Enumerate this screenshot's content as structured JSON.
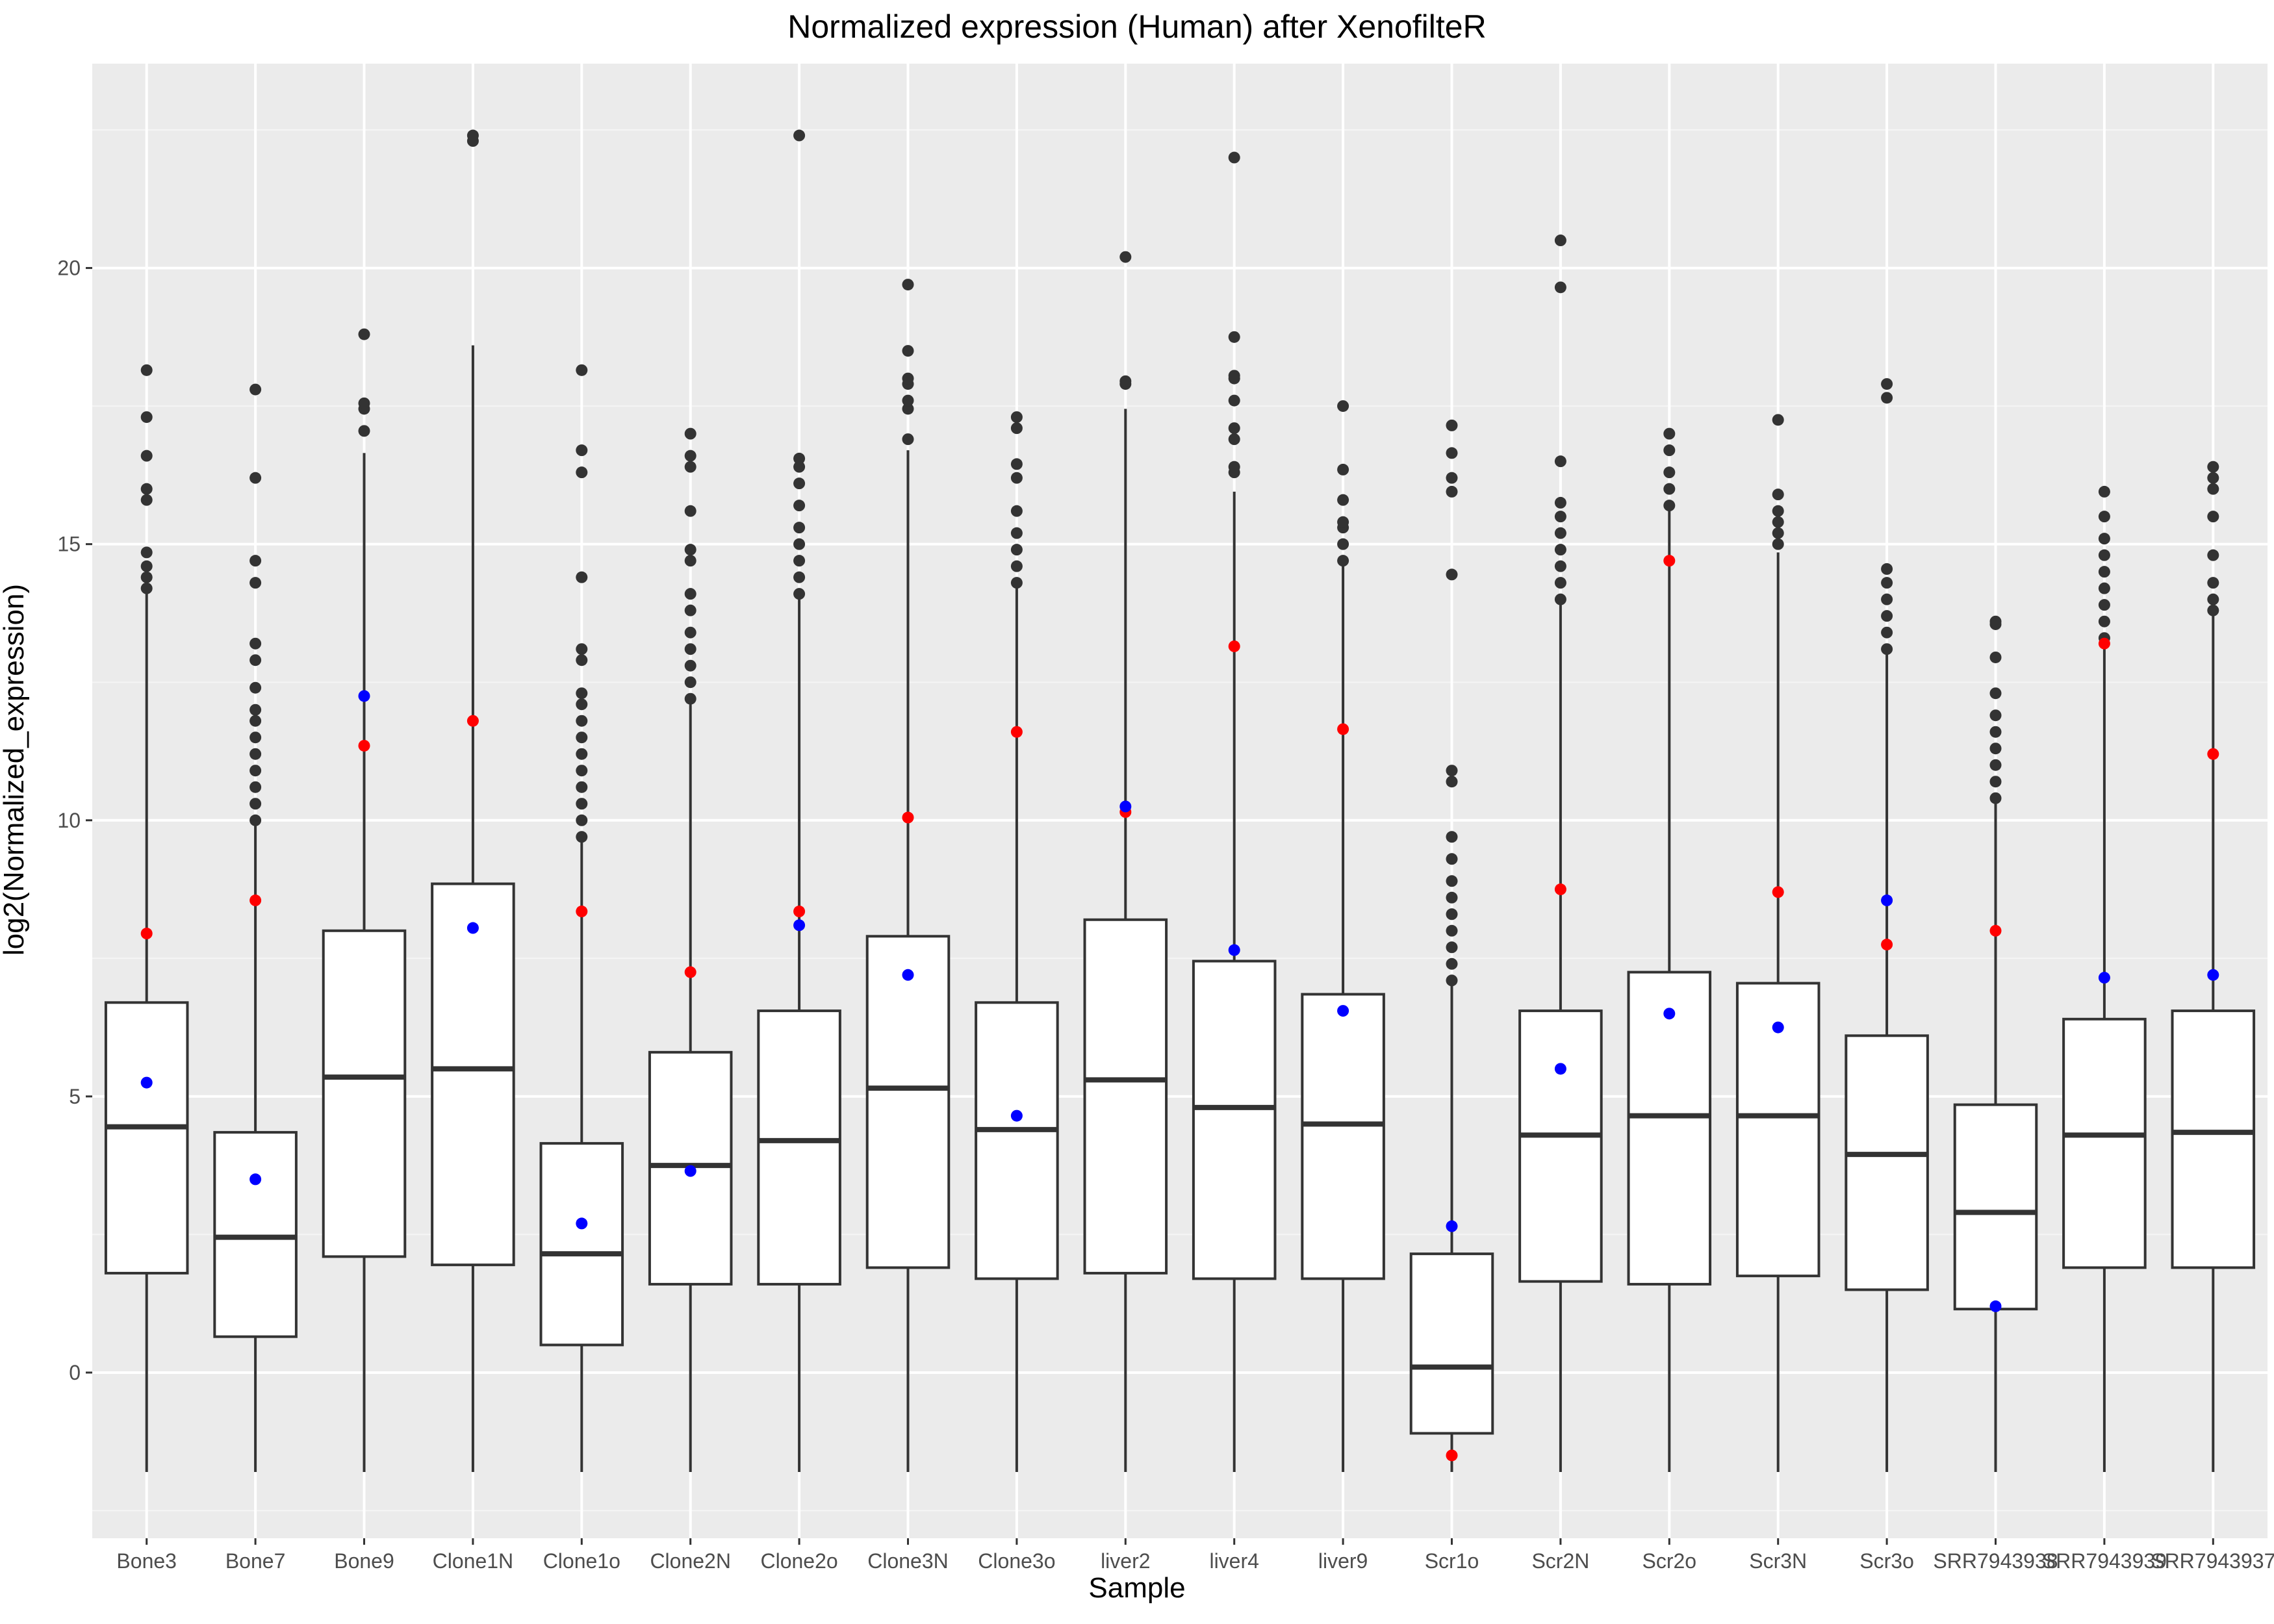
{
  "chart_data": {
    "type": "box",
    "title": "Normalized expression (Human) after XenofilteR",
    "xlabel": "Sample",
    "ylabel": "log2(Normalized_expression)",
    "ylim": [
      -3,
      23.7
    ],
    "yticks": [
      0,
      5,
      10,
      15,
      20
    ],
    "grid": true,
    "legend": "none",
    "colors": {
      "panel": "#EBEBEB",
      "grid_major": "#FFFFFF",
      "grid_minor": "#F5F5F5",
      "box_fill": "#FFFFFF",
      "box_line": "#333333",
      "outlier": "#333333",
      "blue_point": "#0000FF",
      "red_point": "#FF0000"
    },
    "categories": [
      "Bone3",
      "Bone7",
      "Bone9",
      "Clone1N",
      "Clone1o",
      "Clone2N",
      "Clone2o",
      "Clone3N",
      "Clone3o",
      "liver2",
      "liver4",
      "liver9",
      "Scr1o",
      "Scr2N",
      "Scr2o",
      "Scr3N",
      "Scr3o",
      "SRR7943938",
      "SRR7943939",
      "SRR7943937"
    ],
    "boxes": [
      {
        "q1": 1.8,
        "median": 4.45,
        "q3": 6.7,
        "lower": -1.8,
        "upper": 14.1,
        "blue": 5.25,
        "red": 7.95,
        "outliers": [
          14.2,
          14.4,
          14.6,
          14.85,
          15.8,
          16.0,
          16.6,
          17.3,
          18.15
        ]
      },
      {
        "q1": 0.65,
        "median": 2.45,
        "q3": 4.35,
        "lower": -1.8,
        "upper": 9.9,
        "blue": 3.5,
        "red": 8.55,
        "outliers": [
          10.0,
          10.3,
          10.6,
          10.9,
          11.2,
          11.5,
          11.8,
          12.0,
          12.4,
          12.9,
          13.2,
          14.3,
          14.7,
          16.2,
          17.8
        ]
      },
      {
        "q1": 2.1,
        "median": 5.35,
        "q3": 8.0,
        "lower": -1.8,
        "upper": 16.65,
        "blue": 12.25,
        "red": 11.35,
        "outliers": [
          17.05,
          17.45,
          17.55,
          18.8
        ]
      },
      {
        "q1": 1.95,
        "median": 5.5,
        "q3": 8.85,
        "lower": -1.8,
        "upper": 18.6,
        "blue": 8.05,
        "red": 11.8,
        "outliers": [
          22.3,
          22.4
        ]
      },
      {
        "q1": 0.5,
        "median": 2.15,
        "q3": 4.15,
        "lower": -1.8,
        "upper": 9.6,
        "blue": 2.7,
        "red": 8.35,
        "outliers": [
          9.7,
          10.0,
          10.3,
          10.6,
          10.9,
          11.2,
          11.5,
          11.8,
          12.1,
          12.3,
          12.9,
          13.1,
          14.4,
          16.3,
          16.7,
          18.15
        ]
      },
      {
        "q1": 1.6,
        "median": 3.75,
        "q3": 5.8,
        "lower": -1.8,
        "upper": 12.1,
        "blue": 3.65,
        "red": 7.25,
        "outliers": [
          12.2,
          12.5,
          12.8,
          13.1,
          13.4,
          13.8,
          14.1,
          14.7,
          14.9,
          15.6,
          16.4,
          16.6,
          17.0
        ]
      },
      {
        "q1": 1.6,
        "median": 4.2,
        "q3": 6.55,
        "lower": -1.8,
        "upper": 14.0,
        "blue": 8.1,
        "red": 8.35,
        "outliers": [
          14.1,
          14.4,
          14.7,
          15.0,
          15.3,
          15.7,
          16.1,
          16.4,
          16.55,
          22.4
        ]
      },
      {
        "q1": 1.9,
        "median": 5.15,
        "q3": 7.9,
        "lower": -1.8,
        "upper": 16.7,
        "blue": 7.2,
        "red": 10.05,
        "outliers": [
          16.9,
          17.45,
          17.6,
          17.9,
          18.0,
          18.5,
          19.7
        ]
      },
      {
        "q1": 1.7,
        "median": 4.4,
        "q3": 6.7,
        "lower": -1.8,
        "upper": 14.2,
        "blue": 4.65,
        "red": 11.6,
        "outliers": [
          14.3,
          14.6,
          14.9,
          15.2,
          15.6,
          16.2,
          16.45,
          17.1,
          17.3
        ]
      },
      {
        "q1": 1.8,
        "median": 5.3,
        "q3": 8.2,
        "lower": -1.8,
        "upper": 17.45,
        "blue": 10.25,
        "red": 10.15,
        "outliers": [
          17.9,
          17.95,
          20.2
        ]
      },
      {
        "q1": 1.7,
        "median": 4.8,
        "q3": 7.45,
        "lower": -1.8,
        "upper": 15.95,
        "blue": 7.65,
        "red": 13.15,
        "outliers": [
          16.3,
          16.4,
          16.9,
          17.1,
          17.6,
          18.0,
          18.05,
          18.75,
          22.0
        ]
      },
      {
        "q1": 1.7,
        "median": 4.5,
        "q3": 6.85,
        "lower": -1.8,
        "upper": 14.6,
        "blue": 6.55,
        "red": 11.65,
        "outliers": [
          14.7,
          15.0,
          15.3,
          15.4,
          15.8,
          16.35,
          17.5
        ]
      },
      {
        "q1": -1.1,
        "median": 0.1,
        "q3": 2.15,
        "lower": -1.8,
        "upper": 7.0,
        "blue": 2.65,
        "red": -1.5,
        "outliers": [
          7.1,
          7.4,
          7.7,
          8.0,
          8.3,
          8.6,
          8.9,
          9.3,
          9.7,
          10.7,
          10.9,
          14.45,
          15.95,
          16.2,
          16.65,
          17.15
        ]
      },
      {
        "q1": 1.65,
        "median": 4.3,
        "q3": 6.55,
        "lower": -1.8,
        "upper": 13.9,
        "blue": 5.5,
        "red": 8.75,
        "outliers": [
          14.0,
          14.3,
          14.6,
          14.9,
          15.2,
          15.5,
          15.75,
          16.5,
          19.65,
          20.5
        ]
      },
      {
        "q1": 1.6,
        "median": 4.65,
        "q3": 7.25,
        "lower": -1.8,
        "upper": 15.6,
        "blue": 6.5,
        "red": 14.7,
        "outliers": [
          15.7,
          16.0,
          16.3,
          16.7,
          17.0
        ]
      },
      {
        "q1": 1.75,
        "median": 4.65,
        "q3": 7.05,
        "lower": -1.8,
        "upper": 14.85,
        "blue": 6.25,
        "red": 8.7,
        "outliers": [
          15.0,
          15.2,
          15.4,
          15.6,
          15.9,
          17.25
        ]
      },
      {
        "q1": 1.5,
        "median": 3.95,
        "q3": 6.1,
        "lower": -1.8,
        "upper": 13.0,
        "blue": 8.55,
        "red": 7.75,
        "outliers": [
          13.1,
          13.4,
          13.7,
          14.0,
          14.3,
          14.55,
          17.65,
          17.9
        ]
      },
      {
        "q1": 1.15,
        "median": 2.9,
        "q3": 4.85,
        "lower": -1.8,
        "upper": 10.35,
        "blue": 1.2,
        "red": 8.0,
        "outliers": [
          10.4,
          10.7,
          11.0,
          11.3,
          11.6,
          11.9,
          12.3,
          12.95,
          13.55,
          13.6
        ]
      },
      {
        "q1": 1.9,
        "median": 4.3,
        "q3": 6.4,
        "lower": -1.8,
        "upper": 13.2,
        "blue": 7.15,
        "red": 13.2,
        "outliers": [
          13.3,
          13.6,
          13.9,
          14.2,
          14.5,
          14.8,
          15.1,
          15.5,
          15.95
        ]
      },
      {
        "q1": 1.9,
        "median": 4.35,
        "q3": 6.55,
        "lower": -1.8,
        "upper": 13.7,
        "blue": 7.2,
        "red": 11.2,
        "outliers": [
          13.8,
          14.0,
          14.3,
          14.8,
          15.5,
          16.0,
          16.2,
          16.4
        ]
      }
    ]
  }
}
